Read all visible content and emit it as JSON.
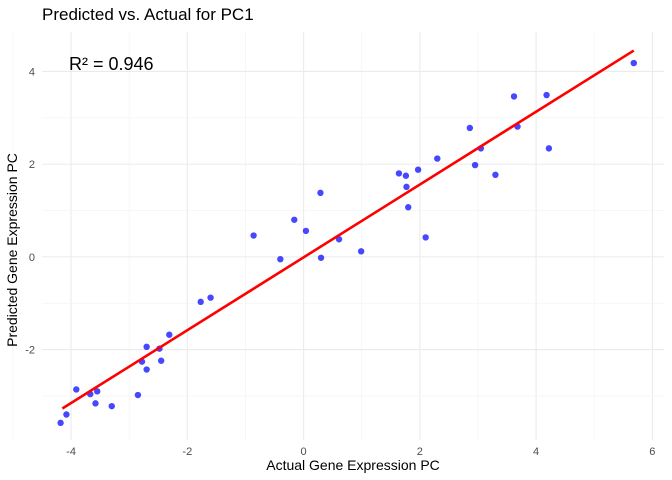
{
  "chart_data": {
    "type": "scatter",
    "title": "Predicted vs. Actual for PC1",
    "xlabel": "Actual Gene Expression PC",
    "ylabel": "Predicted Gene Expression PC",
    "annotation": "R² = 0.946",
    "xlim": [
      -4.5,
      6.2
    ],
    "ylim": [
      -3.95,
      4.85
    ],
    "x_ticks": [
      -4,
      -2,
      0,
      2,
      4,
      6
    ],
    "y_ticks": [
      -2,
      0,
      2,
      4
    ],
    "x_tick_labels": [
      "-4",
      "-2",
      "0",
      "2",
      "4",
      "6"
    ],
    "y_tick_labels": [
      "-2",
      "0",
      "2",
      "4"
    ],
    "grid": true,
    "point_color": "#0000ff",
    "line_color": "#ff0000",
    "points": [
      {
        "x": -4.18,
        "y": -3.58
      },
      {
        "x": -4.08,
        "y": -3.4
      },
      {
        "x": -3.91,
        "y": -2.86
      },
      {
        "x": -3.67,
        "y": -2.96
      },
      {
        "x": -3.55,
        "y": -2.9
      },
      {
        "x": -3.58,
        "y": -3.16
      },
      {
        "x": -3.3,
        "y": -3.22
      },
      {
        "x": -2.85,
        "y": -2.98
      },
      {
        "x": -2.78,
        "y": -2.26
      },
      {
        "x": -2.7,
        "y": -1.94
      },
      {
        "x": -2.7,
        "y": -2.43
      },
      {
        "x": -2.48,
        "y": -1.98
      },
      {
        "x": -2.45,
        "y": -2.24
      },
      {
        "x": -2.31,
        "y": -1.68
      },
      {
        "x": -1.77,
        "y": -0.97
      },
      {
        "x": -1.6,
        "y": -0.88
      },
      {
        "x": -0.86,
        "y": 0.46
      },
      {
        "x": -0.4,
        "y": -0.05
      },
      {
        "x": -0.16,
        "y": 0.8
      },
      {
        "x": 0.04,
        "y": 0.56
      },
      {
        "x": 0.29,
        "y": 1.38
      },
      {
        "x": 0.3,
        "y": -0.02
      },
      {
        "x": 0.61,
        "y": 0.38
      },
      {
        "x": 0.99,
        "y": 0.12
      },
      {
        "x": 1.64,
        "y": 1.8
      },
      {
        "x": 1.76,
        "y": 1.75
      },
      {
        "x": 1.77,
        "y": 1.51
      },
      {
        "x": 1.8,
        "y": 1.07
      },
      {
        "x": 1.97,
        "y": 1.88
      },
      {
        "x": 2.1,
        "y": 0.42
      },
      {
        "x": 2.3,
        "y": 2.12
      },
      {
        "x": 2.86,
        "y": 2.78
      },
      {
        "x": 2.95,
        "y": 1.98
      },
      {
        "x": 3.05,
        "y": 2.34
      },
      {
        "x": 3.3,
        "y": 1.77
      },
      {
        "x": 3.62,
        "y": 3.46
      },
      {
        "x": 3.68,
        "y": 2.81
      },
      {
        "x": 4.18,
        "y": 3.49
      },
      {
        "x": 4.22,
        "y": 2.34
      },
      {
        "x": 5.68,
        "y": 4.18
      }
    ],
    "fit_line": {
      "x": [
        -4.15,
        5.68
      ],
      "y": [
        -3.27,
        4.45
      ]
    }
  }
}
